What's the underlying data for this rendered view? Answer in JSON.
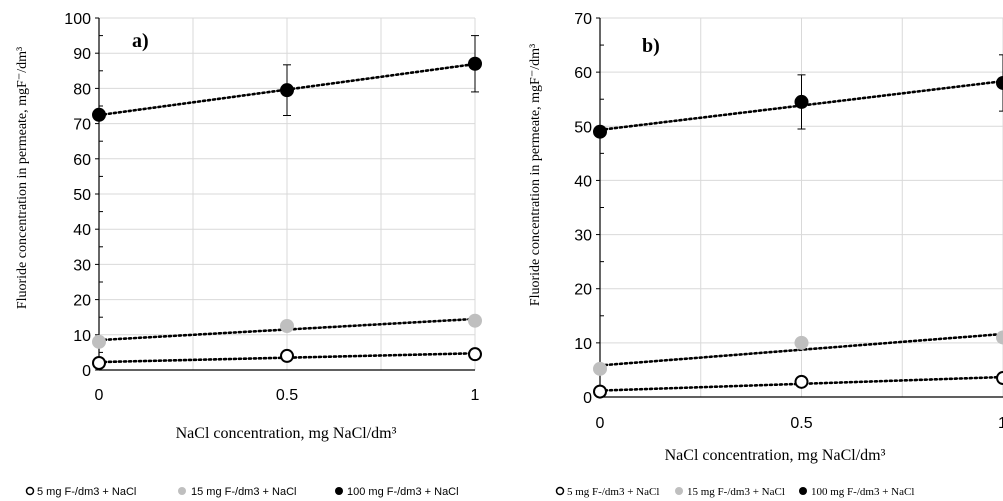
{
  "chart_data": [
    {
      "panel": "a)",
      "type": "scatter",
      "xlabel": "NaCl concentration, mg NaCl/dm³",
      "ylabel": "Fluoride concentration in permeate, mgF⁻/dm³",
      "x": [
        0,
        0.5,
        1
      ],
      "x_ticks": [
        "0",
        "0.5",
        "1"
      ],
      "ylim": [
        0,
        100
      ],
      "y_ticks": [
        0,
        10,
        20,
        30,
        40,
        50,
        60,
        70,
        80,
        90,
        100
      ],
      "grid": true,
      "trendline": "linear dotted",
      "legend_position": "bottom",
      "series": [
        {
          "name": "5 mg F-/dm3 + NaCl",
          "marker": "open-circle",
          "color": "#000000",
          "values": [
            2.0,
            4.0,
            4.5
          ],
          "error": [
            0,
            0,
            0
          ]
        },
        {
          "name": "15 mg F-/dm3 + NaCl",
          "marker": "filled-circle",
          "color": "#bfbfbf",
          "values": [
            8.0,
            12.5,
            14.0
          ],
          "error": [
            0,
            0,
            0
          ]
        },
        {
          "name": "100 mg F-/dm3 + NaCl",
          "marker": "filled-circle",
          "color": "#000000",
          "values": [
            72.5,
            79.5,
            87.0
          ],
          "error": [
            0,
            7.2,
            8.0
          ]
        }
      ]
    },
    {
      "panel": "b)",
      "type": "scatter",
      "xlabel": "NaCl concentration, mg NaCl/dm³",
      "ylabel": "Fluoride concentration in permeate, mgF⁻/dm³",
      "x": [
        0,
        0.5,
        1
      ],
      "x_ticks": [
        "0",
        "0.5",
        "1"
      ],
      "ylim": [
        0,
        70
      ],
      "y_ticks": [
        0,
        10,
        20,
        30,
        40,
        50,
        60,
        70
      ],
      "grid": true,
      "trendline": "linear dotted",
      "legend_position": "bottom",
      "series": [
        {
          "name": "5 mg F-/dm3 + NaCl",
          "marker": "open-circle",
          "color": "#000000",
          "values": [
            1.0,
            2.8,
            3.5
          ],
          "error": [
            0,
            0,
            0
          ]
        },
        {
          "name": "15 mg F-/dm3 + NaCl",
          "marker": "filled-circle",
          "color": "#bfbfbf",
          "values": [
            5.2,
            10.0,
            11.0
          ],
          "error": [
            0,
            0,
            0
          ]
        },
        {
          "name": "100 mg F-/dm3 + NaCl",
          "marker": "filled-circle",
          "color": "#000000",
          "values": [
            49.0,
            54.5,
            58.0
          ],
          "error": [
            0,
            5.0,
            5.2
          ]
        }
      ]
    }
  ]
}
